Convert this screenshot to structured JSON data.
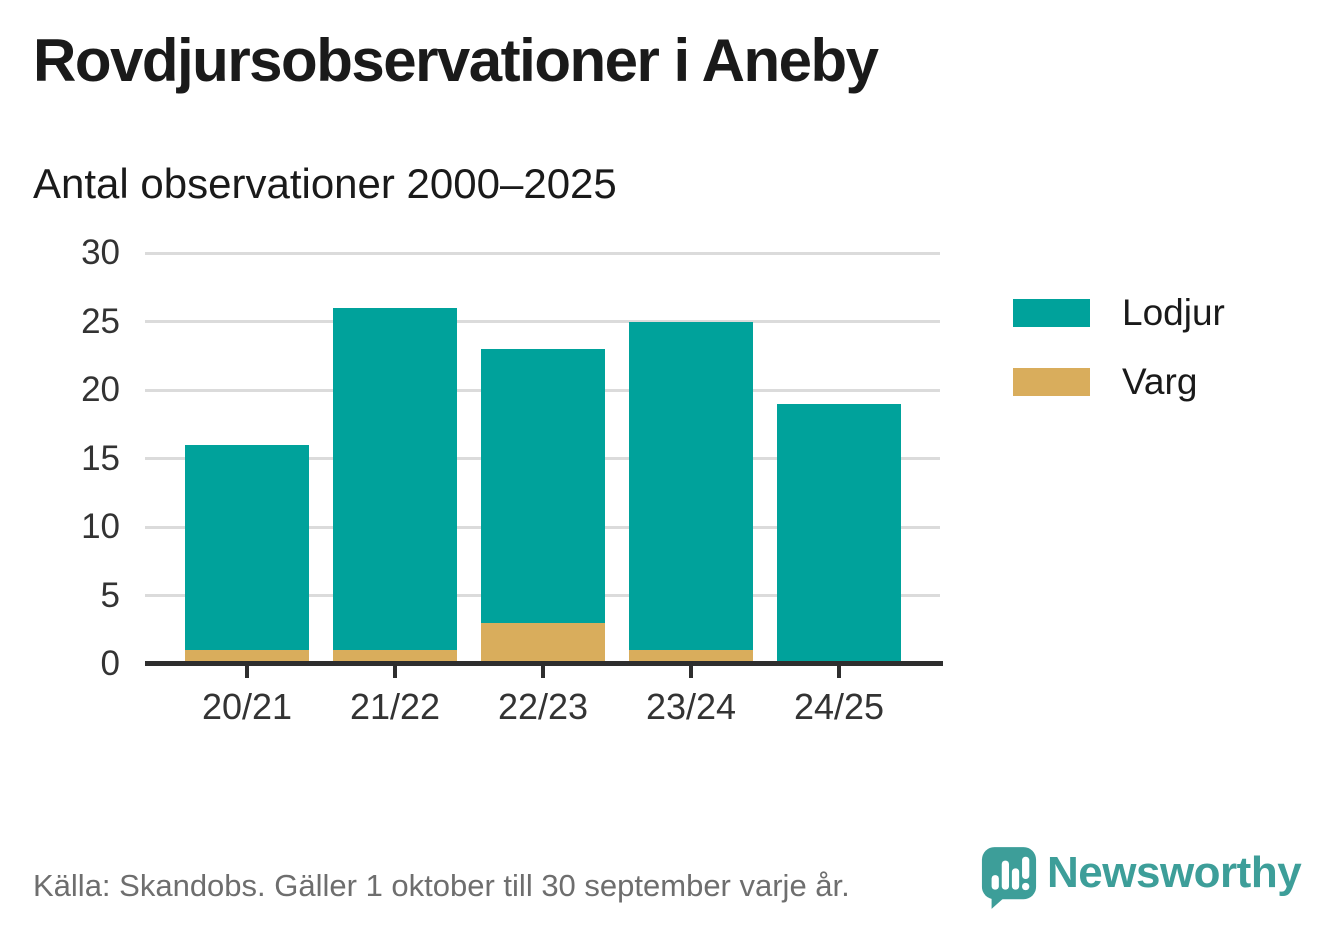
{
  "header": {
    "title": "Rovdjursobservationer i Aneby",
    "subtitle": "Antal observationer 2000–2025"
  },
  "chart_data": {
    "type": "bar",
    "stacked": true,
    "title": "Rovdjursobservationer i Aneby",
    "subtitle": "Antal observationer 2000–2025",
    "categories": [
      "20/21",
      "21/22",
      "22/23",
      "23/24",
      "24/25"
    ],
    "series": [
      {
        "name": "Lodjur",
        "color": "#00a29b",
        "values": [
          15,
          25,
          20,
          24,
          19
        ]
      },
      {
        "name": "Varg",
        "color": "#d9ad5c",
        "values": [
          1,
          1,
          3,
          1,
          0
        ]
      }
    ],
    "stack_order_bottom_to_top": [
      "Varg",
      "Lodjur"
    ],
    "stack_totals": [
      16,
      26,
      23,
      25,
      19
    ],
    "xlabel": "",
    "ylabel": "",
    "ylim": [
      0,
      30
    ],
    "yticks": [
      0,
      5,
      10,
      15,
      20,
      25,
      30
    ],
    "grid": "horizontal",
    "legend_position": "right"
  },
  "legend": {
    "items": [
      {
        "label": "Lodjur",
        "color": "#00a29b"
      },
      {
        "label": "Varg",
        "color": "#d9ad5c"
      }
    ]
  },
  "footer": {
    "source": "Källa: Skandobs. Gäller 1 oktober till 30 september varje år.",
    "brand": "Newsworthy"
  },
  "colors": {
    "lodjur": "#00a29b",
    "varg": "#d9ad5c",
    "gridline": "#dbdbdb",
    "axis": "#2e2e2e",
    "brand_teal": "#3d9e99",
    "source_gray": "#6e6e6e"
  },
  "icons": {
    "brand_icon": "newsworthy-speech-bubble-chart-icon"
  }
}
